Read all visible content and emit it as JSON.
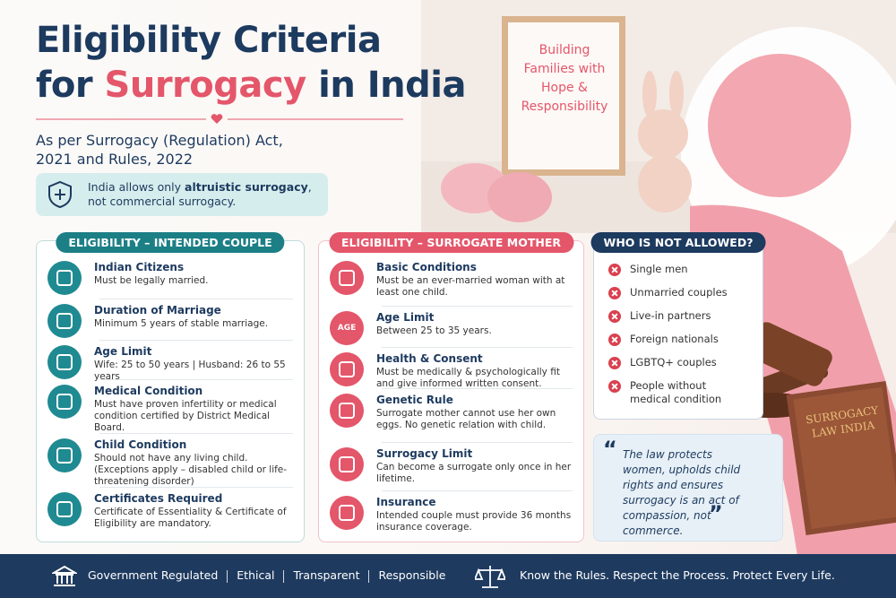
{
  "header": {
    "title_line1": "Eligibility Criteria",
    "title_for": "for",
    "title_highlight": "Surrogacy",
    "title_end": "in India",
    "subtitle": "As per Surrogacy (Regulation) Act, 2021 and Rules, 2022",
    "notice_pre": "India allows only",
    "notice_bold": "altruistic surrogacy",
    "notice_post": ", not commercial surrogacy."
  },
  "photo": {
    "frame_text": "Building Families with Hope & Responsibility",
    "book_text": "SURROGACY LAW INDIA"
  },
  "intended_couple": {
    "heading": "ELIGIBILITY – INTENDED COUPLE",
    "items": [
      {
        "title": "Indian Citizens",
        "text": "Must be legally married."
      },
      {
        "title": "Duration of Marriage",
        "text": "Minimum 5 years of stable marriage."
      },
      {
        "title": "Age Limit",
        "text": "Wife: 25 to 50 years | Husband: 26 to 55 years"
      },
      {
        "title": "Medical Condition",
        "text": "Must have proven infertility or medical condition certified by District Medical Board."
      },
      {
        "title": "Child Condition",
        "text": "Should not have any living child. (Exceptions apply – disabled child or life-threatening disorder)"
      },
      {
        "title": "Certificates Required",
        "text": "Certificate of Essentiality & Certificate of Eligibility are mandatory."
      }
    ]
  },
  "surrogate_mother": {
    "heading": "ELIGIBILITY – SURROGATE MOTHER",
    "age_icon": "AGE",
    "items": [
      {
        "title": "Basic Conditions",
        "text": "Must be an ever-married woman with at least one child."
      },
      {
        "title": "Age Limit",
        "text": "Between 25 to 35 years."
      },
      {
        "title": "Health & Consent",
        "text": "Must be medically & psychologically fit and give informed written consent."
      },
      {
        "title": "Genetic Rule",
        "text": "Surrogate mother cannot use her own eggs. No genetic relation with child."
      },
      {
        "title": "Surrogacy Limit",
        "text": "Can become a surrogate only once in her lifetime."
      },
      {
        "title": "Insurance",
        "text": "Intended couple must provide 36 months insurance coverage."
      }
    ]
  },
  "not_allowed": {
    "heading": "WHO IS NOT ALLOWED?",
    "items": [
      "Single men",
      "Unmarried couples",
      "Live-in partners",
      "Foreign nationals",
      "LGBTQ+ couples",
      "People without medical condition"
    ]
  },
  "quote": {
    "open": "“",
    "text": "The law protects women, upholds child rights and ensures surrogacy is an act of compassion, not commerce.",
    "close": "”"
  },
  "footer": {
    "left": [
      "Government Regulated",
      "Ethical",
      "Transparent",
      "Responsible"
    ],
    "right": "Know the Rules. Respect the Process. Protect Every Life."
  }
}
